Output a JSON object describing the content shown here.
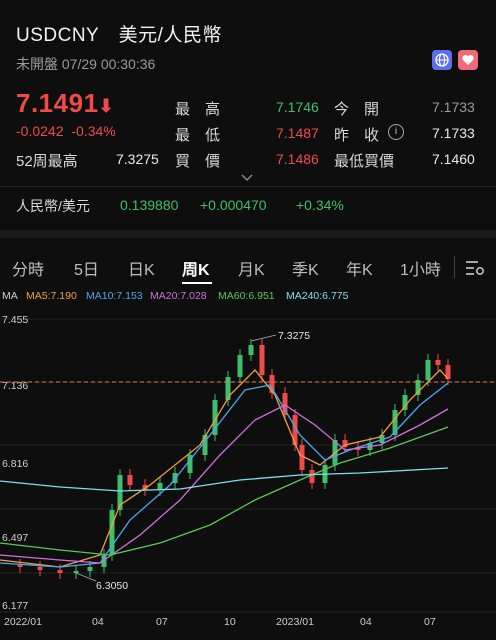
{
  "header": {
    "symbol": "USDCNY",
    "name": "美元/人民幣",
    "status": "未開盤 07/29 00:30:36"
  },
  "quote": {
    "price": "7.1491",
    "arrow": "⬇",
    "change": "-0.0242",
    "change_pct": "-0.34%",
    "labels": {
      "high": "最　高",
      "low": "最　低",
      "buy": "買　價",
      "open": "今　開",
      "prev": "昨　收",
      "w52": "52周最高",
      "lowbuy": "最低買價"
    },
    "values": {
      "high": "7.1746",
      "low": "7.1487",
      "buy": "7.1486",
      "open": "7.1733",
      "prev": "7.1733",
      "w52": "7.3275",
      "lowbuy": "7.1460"
    },
    "expand_icon": "chevron-down-icon"
  },
  "cross": {
    "pair": "人民幣/美元",
    "price": "0.139880",
    "change": "+0.000470",
    "change_pct": "+0.34%"
  },
  "tabs": [
    "分時",
    "5日",
    "日K",
    "周K",
    "月K",
    "季K",
    "年K",
    "1小時"
  ],
  "active_tab": "周K",
  "ma": {
    "label": "MA",
    "ma5": "MA5:7.190",
    "ma10": "MA10:7.153",
    "ma20": "MA20:7.028",
    "ma60": "MA60:6.951",
    "ma240": "MA240:6.775"
  },
  "chart_data": {
    "type": "candlestick",
    "y_ticks": [
      "7.455",
      "7.136",
      "6.816",
      "6.497",
      "6.177"
    ],
    "x_ticks": [
      "2022/01",
      "04",
      "07",
      "10",
      "2023/01",
      "04",
      "07"
    ],
    "annotations": {
      "high": "7.3275",
      "low": "6.3050"
    },
    "reference_line": 7.136,
    "colors": {
      "up": "#3fbf6a",
      "down": "#f04a4a",
      "ma5": "#f0a040",
      "ma10": "#4aa8f0",
      "ma20": "#d070e0",
      "ma60": "#58c858",
      "ma240": "#7fe0e8"
    }
  }
}
